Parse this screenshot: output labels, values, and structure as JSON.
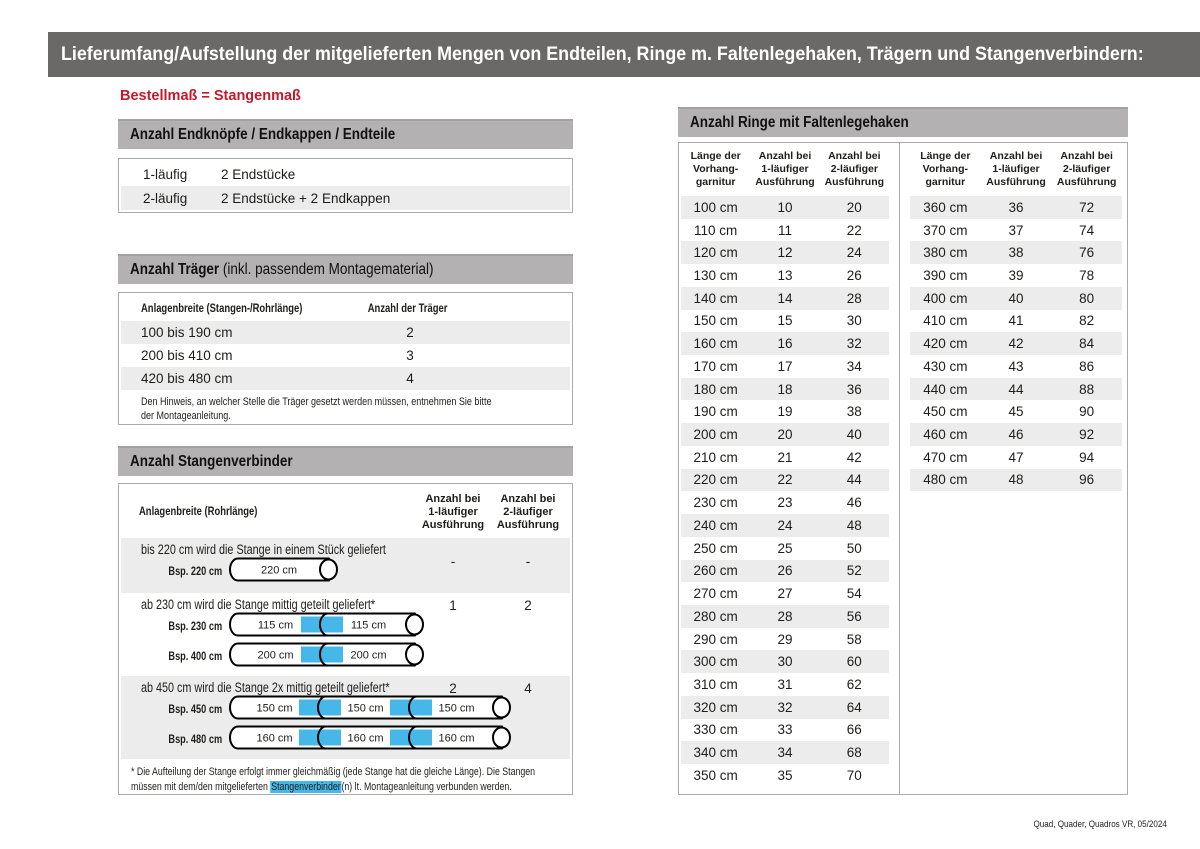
{
  "title": "Lieferumfang/Aufstellung der mitgelieferten Mengen von Endteilen, Ringe m. Faltenlegehaken, Trägern und Stangenverbindern:",
  "subtitle": "Bestellmaß = Stangenmaß",
  "colors": {
    "accent_blue": "#45b7e8",
    "red": "#c31a2b",
    "bar_dark": "#6b6968",
    "bar_gray": "#b3b1b1",
    "row_gray": "#ececec"
  },
  "endteile": {
    "header": "Anzahl Endknöpfe / Endkappen / Endteile",
    "rows": [
      [
        "1-läufig",
        "2 Endstücke"
      ],
      [
        "2-läufig",
        "2 Endstücke + 2 Endkappen"
      ]
    ]
  },
  "traeger": {
    "header_bold": "Anzahl Träger",
    "header_rest": " (inkl. passendem Montagematerial)",
    "col1": "Anlagenbreite (Stangen-/Rohrlänge)",
    "col2": "Anzahl der Träger",
    "rows": [
      [
        "100 bis 190 cm",
        "2"
      ],
      [
        "200 bis 410 cm",
        "3"
      ],
      [
        "420 bis 480 cm",
        "4"
      ]
    ],
    "note_line1": "Den Hinweis, an welcher Stelle die Träger gesetzt werden müssen, entnehmen Sie bitte",
    "note_line2": "der Montageanleitung."
  },
  "verbinder": {
    "header": "Anzahl Stangenverbinder",
    "col0": "Anlagenbreite (Rohrlänge)",
    "col1": [
      "Anzahl bei",
      "1-läufiger",
      "Ausführung"
    ],
    "col2": [
      "Anzahl bei",
      "2-läufiger",
      "Ausführung"
    ],
    "groups": [
      {
        "title": "bis 220 cm wird die Stange in einem Stück geliefert",
        "one": "-",
        "two": "-",
        "shaded": true,
        "examples": [
          {
            "label": "Bsp. 220 cm",
            "segments": [
              "220 cm"
            ]
          }
        ]
      },
      {
        "title": "ab 230 cm wird die Stange mittig geteilt geliefert*",
        "one": "1",
        "two": "2",
        "shaded": false,
        "examples": [
          {
            "label": "Bsp. 230 cm",
            "segments": [
              "115 cm",
              "115 cm"
            ]
          },
          {
            "label": "Bsp. 400 cm",
            "segments": [
              "200 cm",
              "200 cm"
            ]
          }
        ]
      },
      {
        "title": "ab 450 cm wird die Stange 2x mittig geteilt geliefert*",
        "one": "2",
        "two": "4",
        "shaded": true,
        "examples": [
          {
            "label": "Bsp. 450 cm",
            "segments": [
              "150 cm",
              "150 cm",
              "150 cm"
            ]
          },
          {
            "label": "Bsp. 480 cm",
            "segments": [
              "160 cm",
              "160 cm",
              "160 cm"
            ]
          }
        ]
      }
    ],
    "footnote_line1": "* Die Aufteilung der Stange erfolgt immer gleichmäßig (jede Stange hat die gleiche Länge). Die Stangen",
    "footnote_line2_a": "müssen mit dem/den mitgelieferten ",
    "footnote_highlight": "Stangenverbinder",
    "footnote_line2_b": "(n) lt. Montageanleitung verbunden werden."
  },
  "ringe": {
    "header": "Anzahl Ringe mit Faltenlegehaken",
    "col_len": [
      "Länge der",
      "Vorhang-",
      "garnitur"
    ],
    "col1": [
      "Anzahl bei",
      "1-läufiger",
      "Ausführung"
    ],
    "col2": [
      "Anzahl bei",
      "2-läufiger",
      "Ausführung"
    ],
    "left_rows": [
      [
        "100 cm",
        "10",
        "20"
      ],
      [
        "110 cm",
        "11",
        "22"
      ],
      [
        "120 cm",
        "12",
        "24"
      ],
      [
        "130 cm",
        "13",
        "26"
      ],
      [
        "140 cm",
        "14",
        "28"
      ],
      [
        "150 cm",
        "15",
        "30"
      ],
      [
        "160 cm",
        "16",
        "32"
      ],
      [
        "170 cm",
        "17",
        "34"
      ],
      [
        "180 cm",
        "18",
        "36"
      ],
      [
        "190 cm",
        "19",
        "38"
      ],
      [
        "200 cm",
        "20",
        "40"
      ],
      [
        "210 cm",
        "21",
        "42"
      ],
      [
        "220 cm",
        "22",
        "44"
      ],
      [
        "230 cm",
        "23",
        "46"
      ],
      [
        "240 cm",
        "24",
        "48"
      ],
      [
        "250 cm",
        "25",
        "50"
      ],
      [
        "260 cm",
        "26",
        "52"
      ],
      [
        "270 cm",
        "27",
        "54"
      ],
      [
        "280 cm",
        "28",
        "56"
      ],
      [
        "290 cm",
        "29",
        "58"
      ],
      [
        "300 cm",
        "30",
        "60"
      ],
      [
        "310 cm",
        "31",
        "62"
      ],
      [
        "320 cm",
        "32",
        "64"
      ],
      [
        "330 cm",
        "33",
        "66"
      ],
      [
        "340 cm",
        "34",
        "68"
      ],
      [
        "350 cm",
        "35",
        "70"
      ]
    ],
    "right_rows": [
      [
        "360 cm",
        "36",
        "72"
      ],
      [
        "370 cm",
        "37",
        "74"
      ],
      [
        "380 cm",
        "38",
        "76"
      ],
      [
        "390 cm",
        "39",
        "78"
      ],
      [
        "400 cm",
        "40",
        "80"
      ],
      [
        "410 cm",
        "41",
        "82"
      ],
      [
        "420 cm",
        "42",
        "84"
      ],
      [
        "430 cm",
        "43",
        "86"
      ],
      [
        "440 cm",
        "44",
        "88"
      ],
      [
        "450 cm",
        "45",
        "90"
      ],
      [
        "460 cm",
        "46",
        "92"
      ],
      [
        "470 cm",
        "47",
        "94"
      ],
      [
        "480 cm",
        "48",
        "96"
      ]
    ]
  },
  "footer": "Quad, Quader, Quadros VR, 05/2024"
}
